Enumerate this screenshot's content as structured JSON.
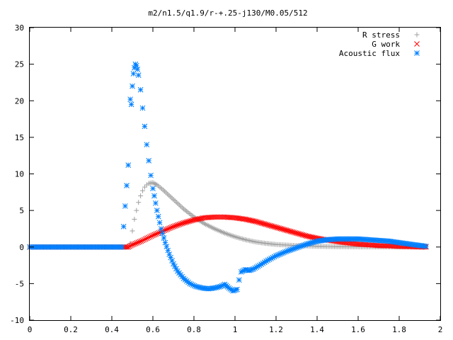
{
  "chart_data": {
    "type": "scatter",
    "title": "m2/n1.5/q1.9/r-+.25-j130/M0.05/512",
    "xlabel": "",
    "ylabel": "",
    "xlim": [
      0,
      2
    ],
    "ylim": [
      -10,
      30
    ],
    "x_ticks": [
      "0",
      "0.2",
      "0.4",
      "0.6",
      "0.8",
      "1",
      "1.2",
      "1.4",
      "1.6",
      "1.8",
      "2"
    ],
    "y_ticks": [
      "-10",
      "-5",
      "0",
      "5",
      "10",
      "15",
      "20",
      "25",
      "30"
    ],
    "grid": false,
    "legend_position": "top-right",
    "series": [
      {
        "name": "R stress",
        "marker": "plus",
        "color": "#a0a0a0",
        "points": [
          [
            0.0,
            0
          ],
          [
            0.1,
            0
          ],
          [
            0.2,
            0
          ],
          [
            0.3,
            0
          ],
          [
            0.4,
            0
          ],
          [
            0.48,
            0
          ],
          [
            0.49,
            0.5
          ],
          [
            0.5,
            2.2
          ],
          [
            0.51,
            3.8
          ],
          [
            0.52,
            5.0
          ],
          [
            0.53,
            6.1
          ],
          [
            0.54,
            7.0
          ],
          [
            0.55,
            7.7
          ],
          [
            0.56,
            8.2
          ],
          [
            0.57,
            8.5
          ],
          [
            0.58,
            8.7
          ],
          [
            0.6,
            8.8
          ],
          [
            0.62,
            8.5
          ],
          [
            0.65,
            7.8
          ],
          [
            0.7,
            6.5
          ],
          [
            0.75,
            5.2
          ],
          [
            0.8,
            4.1
          ],
          [
            0.85,
            3.2
          ],
          [
            0.9,
            2.5
          ],
          [
            0.95,
            1.9
          ],
          [
            1.0,
            1.4
          ],
          [
            1.05,
            1.0
          ],
          [
            1.1,
            0.7
          ],
          [
            1.15,
            0.5
          ],
          [
            1.2,
            0.35
          ],
          [
            1.3,
            0.2
          ],
          [
            1.4,
            0.1
          ],
          [
            1.5,
            0.05
          ],
          [
            1.6,
            0.03
          ],
          [
            1.7,
            0.02
          ],
          [
            1.8,
            0.01
          ],
          [
            1.93,
            0.0
          ]
        ]
      },
      {
        "name": "G work",
        "marker": "cross",
        "color": "#ff0000",
        "points": [
          [
            0.0,
            0
          ],
          [
            0.1,
            0
          ],
          [
            0.2,
            0
          ],
          [
            0.3,
            0
          ],
          [
            0.4,
            0
          ],
          [
            0.48,
            0
          ],
          [
            0.5,
            0.3
          ],
          [
            0.55,
            0.9
          ],
          [
            0.6,
            1.6
          ],
          [
            0.65,
            2.2
          ],
          [
            0.7,
            2.8
          ],
          [
            0.75,
            3.3
          ],
          [
            0.8,
            3.7
          ],
          [
            0.85,
            4.0
          ],
          [
            0.9,
            4.1
          ],
          [
            0.95,
            4.1
          ],
          [
            1.0,
            4.0
          ],
          [
            1.05,
            3.8
          ],
          [
            1.1,
            3.5
          ],
          [
            1.15,
            3.1
          ],
          [
            1.2,
            2.7
          ],
          [
            1.25,
            2.3
          ],
          [
            1.3,
            1.9
          ],
          [
            1.35,
            1.5
          ],
          [
            1.4,
            1.2
          ],
          [
            1.45,
            0.95
          ],
          [
            1.5,
            0.75
          ],
          [
            1.55,
            0.55
          ],
          [
            1.6,
            0.4
          ],
          [
            1.65,
            0.3
          ],
          [
            1.7,
            0.2
          ],
          [
            1.75,
            0.15
          ],
          [
            1.8,
            0.1
          ],
          [
            1.85,
            0.05
          ],
          [
            1.93,
            0.0
          ]
        ]
      },
      {
        "name": "Acoustic flux",
        "marker": "star",
        "color": "#0080ff",
        "points": [
          [
            0.0,
            0
          ],
          [
            0.1,
            0
          ],
          [
            0.2,
            0
          ],
          [
            0.3,
            0
          ],
          [
            0.4,
            0
          ],
          [
            0.45,
            0
          ],
          [
            0.48,
            11.2
          ],
          [
            0.49,
            20.2
          ],
          [
            0.495,
            19.5
          ],
          [
            0.5,
            22.0
          ],
          [
            0.505,
            23.7
          ],
          [
            0.51,
            24.5
          ],
          [
            0.515,
            25.0
          ],
          [
            0.52,
            24.8
          ],
          [
            0.525,
            24.3
          ],
          [
            0.53,
            23.5
          ],
          [
            0.54,
            21.5
          ],
          [
            0.55,
            19.0
          ],
          [
            0.56,
            16.5
          ],
          [
            0.57,
            14.0
          ],
          [
            0.58,
            11.8
          ],
          [
            0.59,
            9.8
          ],
          [
            0.6,
            8.0
          ],
          [
            0.62,
            5.0
          ],
          [
            0.64,
            2.5
          ],
          [
            0.66,
            0.6
          ],
          [
            0.68,
            -1.0
          ],
          [
            0.7,
            -2.3
          ],
          [
            0.72,
            -3.3
          ],
          [
            0.75,
            -4.3
          ],
          [
            0.78,
            -5.0
          ],
          [
            0.81,
            -5.4
          ],
          [
            0.84,
            -5.6
          ],
          [
            0.87,
            -5.7
          ],
          [
            0.9,
            -5.6
          ],
          [
            0.93,
            -5.4
          ],
          [
            0.95,
            -5.1
          ],
          [
            0.97,
            -5.6
          ],
          [
            0.99,
            -6.0
          ],
          [
            1.01,
            -5.8
          ],
          [
            1.02,
            -4.5
          ],
          [
            1.03,
            -3.4
          ],
          [
            1.05,
            -3.1
          ],
          [
            1.07,
            -3.2
          ],
          [
            1.09,
            -3.0
          ],
          [
            1.12,
            -2.5
          ],
          [
            1.16,
            -1.8
          ],
          [
            1.2,
            -1.2
          ],
          [
            1.25,
            -0.6
          ],
          [
            1.3,
            -0.1
          ],
          [
            1.35,
            0.4
          ],
          [
            1.4,
            0.8
          ],
          [
            1.45,
            1.0
          ],
          [
            1.5,
            1.1
          ],
          [
            1.55,
            1.1
          ],
          [
            1.6,
            1.1
          ],
          [
            1.65,
            1.0
          ],
          [
            1.7,
            0.9
          ],
          [
            1.75,
            0.8
          ],
          [
            1.8,
            0.6
          ],
          [
            1.85,
            0.4
          ],
          [
            1.93,
            0.1
          ]
        ]
      }
    ]
  }
}
